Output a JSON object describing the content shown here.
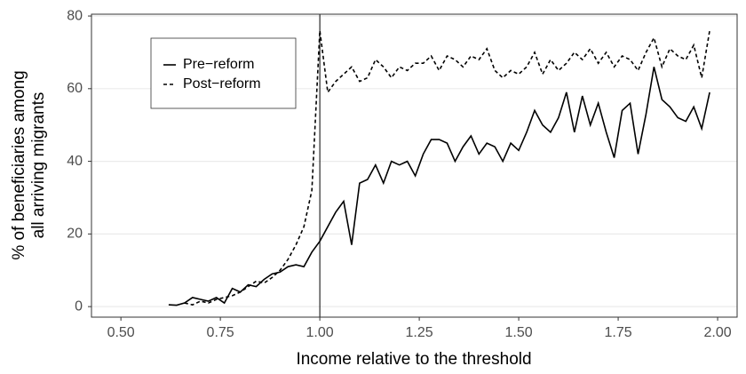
{
  "chart_data": {
    "type": "line",
    "xlabel": "Income relative to the threshold",
    "ylabel": [
      "% of beneficiaries among",
      "all arriving migrants"
    ],
    "x": [
      0.62,
      0.64,
      0.66,
      0.68,
      0.7,
      0.72,
      0.74,
      0.76,
      0.78,
      0.8,
      0.82,
      0.84,
      0.86,
      0.88,
      0.9,
      0.92,
      0.94,
      0.96,
      0.98,
      1.0,
      1.02,
      1.04,
      1.06,
      1.08,
      1.1,
      1.12,
      1.14,
      1.16,
      1.18,
      1.2,
      1.22,
      1.24,
      1.26,
      1.28,
      1.3,
      1.32,
      1.34,
      1.36,
      1.38,
      1.4,
      1.42,
      1.44,
      1.46,
      1.48,
      1.5,
      1.52,
      1.54,
      1.56,
      1.58,
      1.6,
      1.62,
      1.64,
      1.66,
      1.68,
      1.7,
      1.72,
      1.74,
      1.76,
      1.78,
      1.8,
      1.82,
      1.84,
      1.86,
      1.88,
      1.9,
      1.92,
      1.94,
      1.96,
      1.98
    ],
    "series": [
      {
        "name": "Pre−reform",
        "color": "#000000",
        "linestyle": "solid",
        "values": [
          0.5,
          0.4,
          1.0,
          2.5,
          2.0,
          1.5,
          2.5,
          1.0,
          5.0,
          4.0,
          6.0,
          5.5,
          7.5,
          9.0,
          9.5,
          11.0,
          11.5,
          11.0,
          15.0,
          18.0,
          22.0,
          26.0,
          29.0,
          17.0,
          34.0,
          35.0,
          39.0,
          34.0,
          40.0,
          39.0,
          40.0,
          36.0,
          42.0,
          46.0,
          46.0,
          45.0,
          40.0,
          44.0,
          47.0,
          42.0,
          45.0,
          44.0,
          40.0,
          45.0,
          43.0,
          48.0,
          54.0,
          50.0,
          48.0,
          52.0,
          59.0,
          48.0,
          58.0,
          50.0,
          56.0,
          48.0,
          41.0,
          54.0,
          56.0,
          42.0,
          53.0,
          66.0,
          57.0,
          55.0,
          52.0,
          51.0,
          55.0,
          49.0,
          59.0
        ]
      },
      {
        "name": "Post−reform",
        "color": "#000000",
        "linestyle": "dashed",
        "values": [
          null,
          null,
          1.0,
          0.5,
          1.5,
          1.0,
          2.0,
          2.5,
          3.0,
          4.0,
          5.5,
          7.0,
          6.5,
          8.0,
          10.0,
          13.0,
          17.0,
          22.0,
          32.0,
          76.0,
          59.0,
          62.0,
          64.0,
          66.0,
          62.0,
          63.0,
          68.0,
          66.0,
          63.0,
          66.0,
          65.0,
          67.0,
          67.0,
          69.0,
          65.0,
          69.0,
          68.0,
          66.0,
          69.0,
          68.0,
          71.0,
          65.0,
          63.0,
          65.0,
          64.0,
          66.0,
          70.0,
          64.0,
          68.0,
          65.0,
          67.0,
          70.0,
          68.0,
          71.0,
          67.0,
          70.0,
          66.0,
          69.0,
          68.0,
          65.0,
          70.0,
          74.0,
          66.0,
          71.0,
          69.0,
          68.0,
          72.0,
          63.0,
          76.0
        ]
      }
    ],
    "vline": 1,
    "xlim": [
      0.426,
      2.049
    ],
    "ylim": [
      -2.9,
      80.5
    ],
    "xticks": [
      {
        "value": 0.5,
        "label": "0.50"
      },
      {
        "value": 0.75,
        "label": "0.75"
      },
      {
        "value": 1,
        "label": "1.00"
      },
      {
        "value": 1.25,
        "label": "1.25"
      },
      {
        "value": 1.5,
        "label": "1.50"
      },
      {
        "value": 1.75,
        "label": "1.75"
      },
      {
        "value": 2,
        "label": "2.00"
      }
    ],
    "yticks": [
      0,
      20,
      40,
      60,
      80
    ],
    "grid": true,
    "legend": "top-left"
  }
}
